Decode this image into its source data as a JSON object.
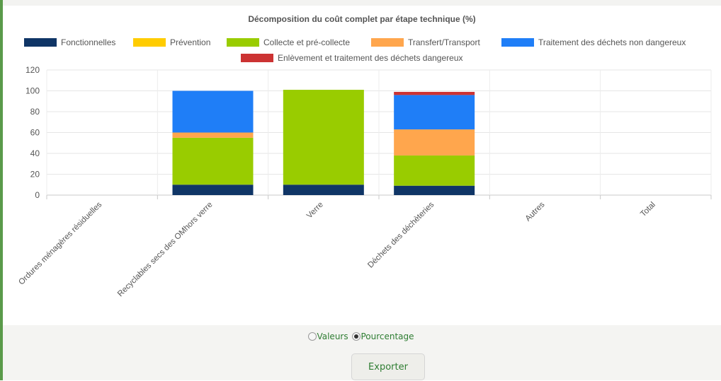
{
  "chart_data": {
    "type": "bar",
    "stacked": true,
    "title": "Décomposition du coût complet par étape technique (%)",
    "categories": [
      "Ordures ménagères résiduelles",
      "Recyclables secs des OMhors verre",
      "Verre",
      "Déchets des déchèteries",
      "Autres",
      "Total"
    ],
    "series": [
      {
        "name": "Fonctionnelles",
        "color": "#0f3566",
        "values": [
          0,
          10,
          10,
          9,
          0,
          0
        ]
      },
      {
        "name": "Prévention",
        "color": "#ffcc00",
        "values": [
          0,
          0,
          0,
          0,
          0,
          0
        ]
      },
      {
        "name": "Collecte et pré-collecte",
        "color": "#99cc00",
        "values": [
          0,
          45,
          91,
          29,
          0,
          0
        ]
      },
      {
        "name": "Transfert/Transport",
        "color": "#ffa64d",
        "values": [
          0,
          5,
          0,
          25,
          0,
          0
        ]
      },
      {
        "name": "Traitement des déchets non dangereux",
        "color": "#1f7ef7",
        "values": [
          0,
          40,
          0,
          33,
          0,
          0
        ]
      },
      {
        "name": "Enlèvement et traitement des déchets dangereux",
        "color": "#cc3333",
        "values": [
          0,
          0,
          0,
          3,
          0,
          0
        ]
      }
    ],
    "yticks": [
      0,
      20,
      40,
      60,
      80,
      100,
      120
    ],
    "ylim": [
      0,
      120
    ],
    "grid": true,
    "legend_position": "top"
  },
  "controls": {
    "mode_options": [
      "Valeurs",
      "Pourcentage"
    ],
    "selected_mode": "Pourcentage",
    "export_label": "Exporter"
  }
}
